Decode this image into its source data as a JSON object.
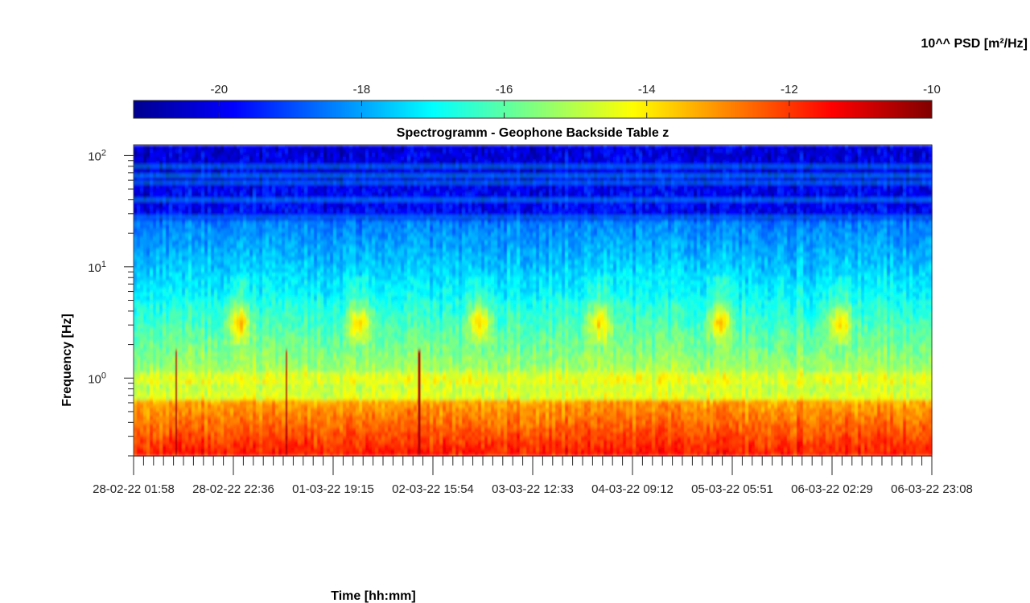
{
  "chart_data": {
    "type": "heatmap",
    "title": "Spectrogramm - Geophone Backside Table z",
    "xlabel": "Time [hh:mm]",
    "ylabel": "Frequency [Hz]",
    "y_scale": "log",
    "ylim": [
      0.2,
      125
    ],
    "y_ticks": [
      {
        "value": 1,
        "base": "10",
        "exp": "0"
      },
      {
        "value": 10,
        "base": "10",
        "exp": "1"
      },
      {
        "value": 100,
        "base": "10",
        "exp": "2"
      }
    ],
    "x_ticks": [
      "28-02-22  01:58",
      "28-02-22  22:36",
      "01-03-22  19:15",
      "02-03-22  15:54",
      "03-03-22  12:33",
      "04-03-22  09:12",
      "05-03-22  05:51",
      "06-03-22  02:29",
      "06-03-22  23:08"
    ],
    "colorbar": {
      "label": "10^^ PSD [m²/Hz]",
      "colormap": "jet",
      "range": [
        -21.2,
        -10
      ],
      "ticks": [
        "-20",
        "-18",
        "-16",
        "-14",
        "-12",
        "-10"
      ],
      "tick_values": [
        -20,
        -18,
        -16,
        -14,
        -12,
        -10
      ]
    },
    "features": {
      "daily_activity_band_hz": [
        2,
        4
      ],
      "diurnal_cycles": 6,
      "low_freq_high_psd_below_hz": 0.65,
      "spectral_line_hz": 1.0,
      "transient_events": [
        "28-02-22",
        "01-03-22",
        "02-03-22"
      ]
    }
  }
}
